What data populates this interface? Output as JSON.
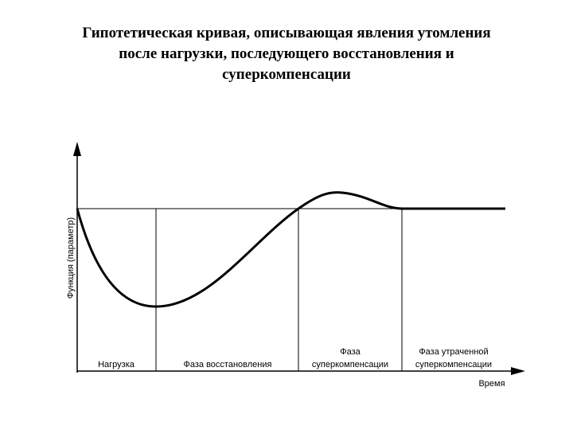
{
  "title": {
    "lines": [
      "Гипотетическая кривая, описывающая явления утомления",
      "после нагрузки, последующего восстановления и",
      "суперкомпенсации"
    ]
  },
  "axes": {
    "y_label": "Функция (параметр)",
    "x_label": "Время"
  },
  "phases": [
    {
      "lines": [
        "Нагрузка"
      ]
    },
    {
      "lines": [
        "Фаза восстановления"
      ]
    },
    {
      "lines": [
        "Фаза",
        "суперкомпенсации"
      ]
    },
    {
      "lines": [
        "Фаза утраченной",
        "суперкомпенсации"
      ]
    }
  ]
}
